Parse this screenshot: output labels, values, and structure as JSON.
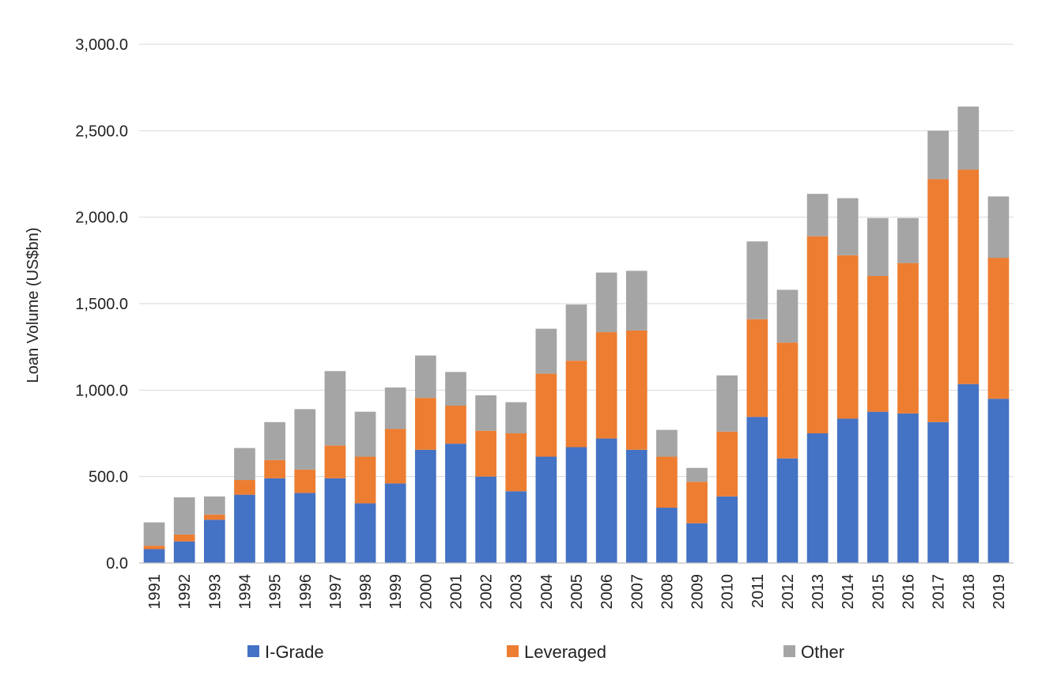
{
  "chart_data": {
    "type": "bar",
    "stacked": true,
    "title": "",
    "xlabel": "",
    "ylabel": "Loan Volume (US$bn)",
    "ylim": [
      0,
      3000
    ],
    "y_ticks": [
      "0.0",
      "500.0",
      "1,000.0",
      "1,500.0",
      "2,000.0",
      "2,500.0",
      "3,000.0"
    ],
    "y_tick_values": [
      0,
      500,
      1000,
      1500,
      2000,
      2500,
      3000
    ],
    "grid": true,
    "legend_position": "bottom",
    "categories": [
      "1991",
      "1992",
      "1993",
      "1994",
      "1995",
      "1996",
      "1997",
      "1998",
      "1999",
      "2000",
      "2001",
      "2002",
      "2003",
      "2004",
      "2005",
      "2006",
      "2007",
      "2008",
      "2009",
      "2010",
      "2011",
      "2012",
      "2013",
      "2014",
      "2015",
      "2016",
      "2017",
      "2018",
      "2019"
    ],
    "series": [
      {
        "name": "I-Grade",
        "color": "#4472c4",
        "values": [
          80,
          125,
          250,
          395,
          490,
          405,
          490,
          345,
          460,
          655,
          690,
          500,
          415,
          615,
          670,
          720,
          655,
          320,
          230,
          385,
          845,
          605,
          750,
          835,
          875,
          865,
          815,
          1035,
          950
        ]
      },
      {
        "name": "Leveraged",
        "color": "#ed7d31",
        "values": [
          20,
          40,
          30,
          85,
          105,
          135,
          190,
          270,
          315,
          300,
          220,
          265,
          335,
          480,
          500,
          615,
          690,
          295,
          240,
          375,
          565,
          670,
          1140,
          945,
          785,
          870,
          1405,
          1240,
          815
        ]
      },
      {
        "name": "Other",
        "color": "#a5a5a5",
        "values": [
          135,
          215,
          105,
          185,
          220,
          350,
          430,
          260,
          240,
          245,
          195,
          205,
          180,
          260,
          325,
          345,
          345,
          155,
          80,
          325,
          450,
          305,
          245,
          330,
          335,
          260,
          280,
          365,
          355
        ]
      }
    ]
  }
}
